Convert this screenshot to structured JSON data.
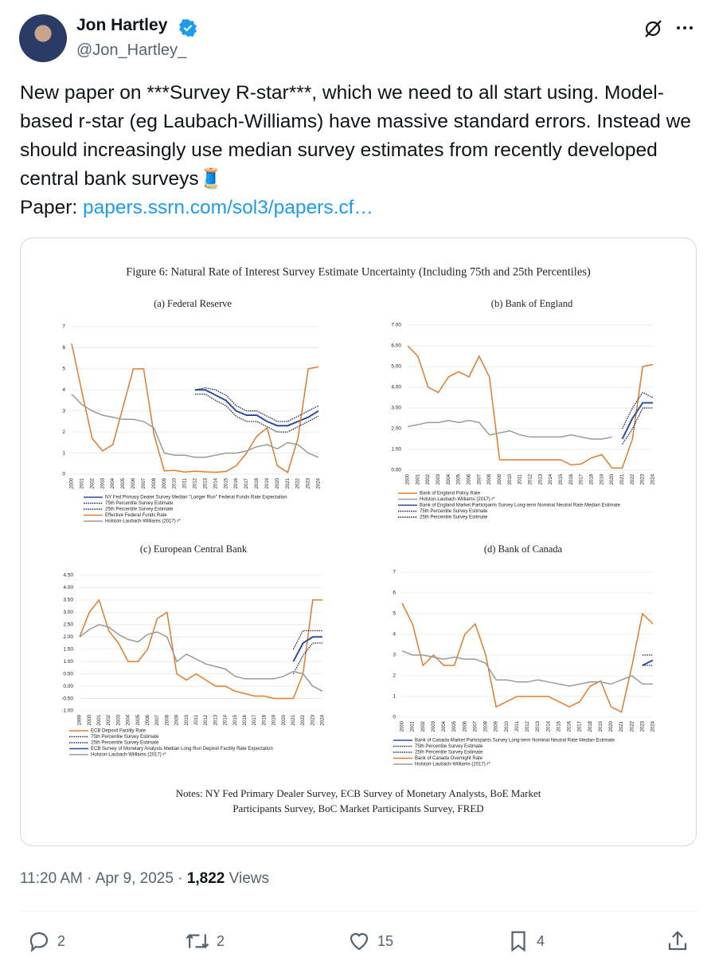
{
  "author": {
    "name": "Jon Hartley",
    "handle": "@Jon_Hartley_"
  },
  "text": "New paper on ***Survey R-star***, which we need to all start using. Model-based r-star (eg Laubach-Williams) have massive standard errors. Instead we should increasingly use median survey estimates from recently developed central bank surveys🧵",
  "paper_label": "Paper:",
  "link": "papers.ssrn.com/sol3/papers.cf…",
  "figure": {
    "title": "Figure 6: Natural Rate of Interest Survey Estimate Uncertainty (Including 75th and 25th Percentiles)",
    "notes": "Notes: NY Fed Primary Dealer Survey, ECB Survey of Monetary Analysts, BoE Market Participants Survey, BoC Market Participants Survey, FRED",
    "panels": [
      {
        "type": "line",
        "title": "(a) Federal Reserve",
        "x": [
          2000,
          2001,
          2002,
          2003,
          2004,
          2005,
          2006,
          2007,
          2008,
          2009,
          2010,
          2011,
          2012,
          2013,
          2014,
          2015,
          2016,
          2017,
          2018,
          2019,
          2020,
          2021,
          2022,
          2023,
          2024
        ],
        "ylim": [
          0,
          7
        ],
        "yticks": [
          0,
          1,
          2,
          3,
          4,
          5,
          6,
          7
        ],
        "grid": true,
        "series": [
          {
            "name": "NY Fed Primary Dealer Survey Median \"Longer Run\" Federal Funds Rate Expectation",
            "color": "#2b4ea2",
            "line_style": "solid",
            "values": [
              null,
              null,
              null,
              null,
              null,
              null,
              null,
              null,
              null,
              null,
              null,
              null,
              4.0,
              4.0,
              3.75,
              3.5,
              3.0,
              2.8,
              2.8,
              2.5,
              2.3,
              2.3,
              2.5,
              2.7,
              3.0
            ]
          },
          {
            "name": "75th Percentile Survey Estimate",
            "color": "#1a2350",
            "line_style": "dotted",
            "values": [
              null,
              null,
              null,
              null,
              null,
              null,
              null,
              null,
              null,
              null,
              null,
              null,
              4.0,
              4.1,
              4.0,
              3.75,
              3.25,
              3.0,
              3.0,
              2.75,
              2.5,
              2.5,
              2.75,
              3.0,
              3.25
            ]
          },
          {
            "name": "25th Percentile Survey Estimate",
            "color": "#1a2350",
            "line_style": "dotted",
            "values": [
              null,
              null,
              null,
              null,
              null,
              null,
              null,
              null,
              null,
              null,
              null,
              null,
              3.8,
              3.8,
              3.5,
              3.25,
              2.75,
              2.5,
              2.5,
              2.25,
              2.0,
              2.0,
              2.25,
              2.5,
              2.75
            ]
          },
          {
            "name": "Effective Federal Funds Rate",
            "color": "#e07b2a",
            "line_style": "solid",
            "values": [
              6.2,
              3.9,
              1.7,
              1.1,
              1.4,
              3.2,
              5.0,
              5.0,
              1.9,
              0.16,
              0.18,
              0.1,
              0.14,
              0.11,
              0.09,
              0.13,
              0.4,
              1.0,
              1.8,
              2.2,
              0.4,
              0.08,
              1.7,
              5.0,
              5.1
            ]
          },
          {
            "name": "Holston-Laubach-Williams (2017) r*",
            "color": "#9a9a9a",
            "line_style": "solid",
            "values": [
              3.8,
              3.3,
              3.0,
              2.8,
              2.7,
              2.6,
              2.6,
              2.5,
              2.2,
              1.0,
              0.9,
              0.9,
              0.8,
              0.8,
              0.9,
              1.0,
              1.0,
              1.1,
              1.3,
              1.4,
              1.2,
              1.5,
              1.4,
              1.0,
              0.8
            ]
          }
        ]
      },
      {
        "type": "line",
        "title": "(b) Bank of England",
        "x": [
          2000,
          2001,
          2002,
          2003,
          2004,
          2005,
          2006,
          2007,
          2008,
          2009,
          2010,
          2011,
          2012,
          2013,
          2014,
          2015,
          2016,
          2017,
          2018,
          2019,
          2020,
          2021,
          2022,
          2023,
          2024
        ],
        "ylim": [
          0,
          7
        ],
        "yticks": [
          {
            "value": 0,
            "label": "0.00"
          },
          {
            "value": 1,
            "label": "1.00"
          },
          {
            "value": 2,
            "label": "2.00"
          },
          {
            "value": 3,
            "label": "3.00"
          },
          {
            "value": 4,
            "label": "4.00"
          },
          {
            "value": 5,
            "label": "5.00"
          },
          {
            "value": 6,
            "label": "6.00"
          },
          {
            "value": 7,
            "label": "7.00"
          }
        ],
        "grid": true,
        "series": [
          {
            "name": "Bank of England Policy Rate",
            "color": "#e07b2a",
            "line_style": "solid",
            "values": [
              6.0,
              5.5,
              4.0,
              3.75,
              4.5,
              4.75,
              4.5,
              5.5,
              4.5,
              0.5,
              0.5,
              0.5,
              0.5,
              0.5,
              0.5,
              0.5,
              0.25,
              0.3,
              0.6,
              0.75,
              0.1,
              0.1,
              1.5,
              5.0,
              5.1
            ]
          },
          {
            "name": "Holston-Laubach-Williams (2017) r*",
            "color": "#9a9a9a",
            "line_style": "solid",
            "values": [
              2.1,
              2.2,
              2.3,
              2.3,
              2.4,
              2.3,
              2.4,
              2.3,
              1.7,
              1.8,
              1.9,
              1.7,
              1.6,
              1.6,
              1.6,
              1.6,
              1.7,
              1.6,
              1.5,
              1.5,
              1.6,
              null,
              null,
              null,
              null
            ]
          },
          {
            "name": "Bank of England Market Participants Survey Long-term Nominal Neutral Rate Median Estimate",
            "color": "#2b4ea2",
            "line_style": "solid",
            "values": [
              null,
              null,
              null,
              null,
              null,
              null,
              null,
              null,
              null,
              null,
              null,
              null,
              null,
              null,
              null,
              null,
              null,
              null,
              null,
              null,
              null,
              1.5,
              2.5,
              3.25,
              3.25
            ]
          },
          {
            "name": "75th Percentile Survey Estimate",
            "color": "#1a2350",
            "line_style": "dotted",
            "values": [
              null,
              null,
              null,
              null,
              null,
              null,
              null,
              null,
              null,
              null,
              null,
              null,
              null,
              null,
              null,
              null,
              null,
              null,
              null,
              null,
              null,
              2.0,
              3.0,
              3.75,
              3.5
            ]
          },
          {
            "name": "25th Percentile Survey Estimate",
            "color": "#1a2350",
            "line_style": "dotted",
            "values": [
              null,
              null,
              null,
              null,
              null,
              null,
              null,
              null,
              null,
              null,
              null,
              null,
              null,
              null,
              null,
              null,
              null,
              null,
              null,
              null,
              null,
              1.25,
              2.0,
              3.0,
              3.0
            ]
          }
        ]
      },
      {
        "type": "line",
        "title": "(c) European Central Bank",
        "x": [
          1999,
          2000,
          2001,
          2002,
          2003,
          2004,
          2005,
          2006,
          2007,
          2008,
          2009,
          2010,
          2011,
          2012,
          2013,
          2014,
          2015,
          2016,
          2017,
          2018,
          2019,
          2020,
          2021,
          2022,
          2023,
          2024
        ],
        "ylim": [
          -1,
          4.5
        ],
        "yticks": [
          {
            "value": -1,
            "label": "-1.00"
          },
          {
            "value": -0.5,
            "label": "-0.50"
          },
          {
            "value": 0,
            "label": "0.00"
          },
          {
            "value": 0.5,
            "label": "0.50"
          },
          {
            "value": 1,
            "label": "1.00"
          },
          {
            "value": 1.5,
            "label": "1.50"
          },
          {
            "value": 2,
            "label": "2.00"
          },
          {
            "value": 2.5,
            "label": "2.50"
          },
          {
            "value": 3,
            "label": "3.00"
          },
          {
            "value": 3.5,
            "label": "3.50"
          },
          {
            "value": 4,
            "label": "4.00"
          },
          {
            "value": 4.5,
            "label": "4.50"
          }
        ],
        "grid": true,
        "series": [
          {
            "name": "ECB Deposit Facility Rate",
            "color": "#e07b2a",
            "line_style": "solid",
            "values": [
              2.0,
              3.0,
              3.5,
              2.25,
              1.75,
              1.0,
              1.0,
              1.5,
              2.75,
              3.0,
              0.5,
              0.25,
              0.5,
              0.25,
              0.0,
              0.0,
              -0.2,
              -0.3,
              -0.4,
              -0.4,
              -0.5,
              -0.5,
              -0.5,
              0.5,
              3.5,
              3.5
            ]
          },
          {
            "name": "75th Percentile Survey Estimate",
            "color": "#1a2350",
            "line_style": "dotted",
            "values": [
              null,
              null,
              null,
              null,
              null,
              null,
              null,
              null,
              null,
              null,
              null,
              null,
              null,
              null,
              null,
              null,
              null,
              null,
              null,
              null,
              null,
              null,
              1.5,
              2.25,
              2.25,
              2.25
            ]
          },
          {
            "name": "25th Percentile Survey Estimate",
            "color": "#1a2350",
            "line_style": "dotted",
            "values": [
              null,
              null,
              null,
              null,
              null,
              null,
              null,
              null,
              null,
              null,
              null,
              null,
              null,
              null,
              null,
              null,
              null,
              null,
              null,
              null,
              null,
              null,
              0.5,
              1.25,
              1.75,
              1.75
            ]
          },
          {
            "name": "ECB Survey of Monetary Analysts Median Long Run Deposit Facility Rate Expectation",
            "color": "#2b4ea2",
            "line_style": "solid",
            "values": [
              null,
              null,
              null,
              null,
              null,
              null,
              null,
              null,
              null,
              null,
              null,
              null,
              null,
              null,
              null,
              null,
              null,
              null,
              null,
              null,
              null,
              null,
              1.0,
              1.75,
              2.0,
              2.0
            ]
          },
          {
            "name": "Holston-Laubach-Williams (2017) r*",
            "color": "#9a9a9a",
            "line_style": "solid",
            "values": [
              2.0,
              2.3,
              2.5,
              2.4,
              2.1,
              1.9,
              1.8,
              2.1,
              2.2,
              2.0,
              1.0,
              1.3,
              1.1,
              0.9,
              0.8,
              0.7,
              0.4,
              0.3,
              0.3,
              0.3,
              0.3,
              0.4,
              0.6,
              0.5,
              0.0,
              -0.2
            ]
          }
        ]
      },
      {
        "type": "line",
        "title": "(d) Bank of Canada",
        "x": [
          2000,
          2001,
          2002,
          2003,
          2004,
          2005,
          2006,
          2007,
          2008,
          2009,
          2010,
          2011,
          2012,
          2013,
          2014,
          2015,
          2016,
          2017,
          2018,
          2019,
          2020,
          2021,
          2022,
          2023,
          2024
        ],
        "ylim": [
          0,
          7
        ],
        "yticks": [
          0,
          1,
          2,
          3,
          4,
          5,
          6,
          7
        ],
        "grid": true,
        "series": [
          {
            "name": "Bank of Canada Market Participants Survey Long-term Nominal Neutral Rate Median Estimate",
            "color": "#2b4ea2",
            "line_style": "solid",
            "values": [
              null,
              null,
              null,
              null,
              null,
              null,
              null,
              null,
              null,
              null,
              null,
              null,
              null,
              null,
              null,
              null,
              null,
              null,
              null,
              null,
              null,
              null,
              null,
              2.5,
              2.75
            ]
          },
          {
            "name": "75th Percentile Survey Estimate",
            "color": "#1a2350",
            "line_style": "dotted",
            "values": [
              null,
              null,
              null,
              null,
              null,
              null,
              null,
              null,
              null,
              null,
              null,
              null,
              null,
              null,
              null,
              null,
              null,
              null,
              null,
              null,
              null,
              null,
              null,
              3.0,
              3.0
            ]
          },
          {
            "name": "25th Percentile Survey Estimate",
            "color": "#1a2350",
            "line_style": "dotted",
            "values": [
              null,
              null,
              null,
              null,
              null,
              null,
              null,
              null,
              null,
              null,
              null,
              null,
              null,
              null,
              null,
              null,
              null,
              null,
              null,
              null,
              null,
              null,
              null,
              2.5,
              2.5
            ]
          },
          {
            "name": "Bank of Canada Overnight Rate",
            "color": "#e07b2a",
            "line_style": "solid",
            "values": [
              5.5,
              4.5,
              2.5,
              3.0,
              2.5,
              2.5,
              4.0,
              4.5,
              3.0,
              0.5,
              0.75,
              1.0,
              1.0,
              1.0,
              1.0,
              0.75,
              0.5,
              0.75,
              1.5,
              1.75,
              0.5,
              0.25,
              2.5,
              5.0,
              4.5
            ]
          },
          {
            "name": "Holston-Laubach-Williams (2017) r*",
            "color": "#9a9a9a",
            "line_style": "solid",
            "values": [
              3.2,
              3.0,
              3.0,
              2.9,
              2.8,
              2.9,
              2.8,
              2.8,
              2.6,
              1.8,
              1.8,
              1.7,
              1.7,
              1.8,
              1.7,
              1.6,
              1.5,
              1.6,
              1.7,
              1.7,
              1.6,
              1.8,
              2.0,
              1.6,
              1.6
            ]
          }
        ]
      }
    ]
  },
  "meta": {
    "time": "11:20 AM · Apr 9, 2025 ·",
    "views": "1,822",
    "views_label": "Views"
  },
  "actions": {
    "replies": "2",
    "reposts": "2",
    "likes": "15",
    "bookmarks": "4"
  }
}
